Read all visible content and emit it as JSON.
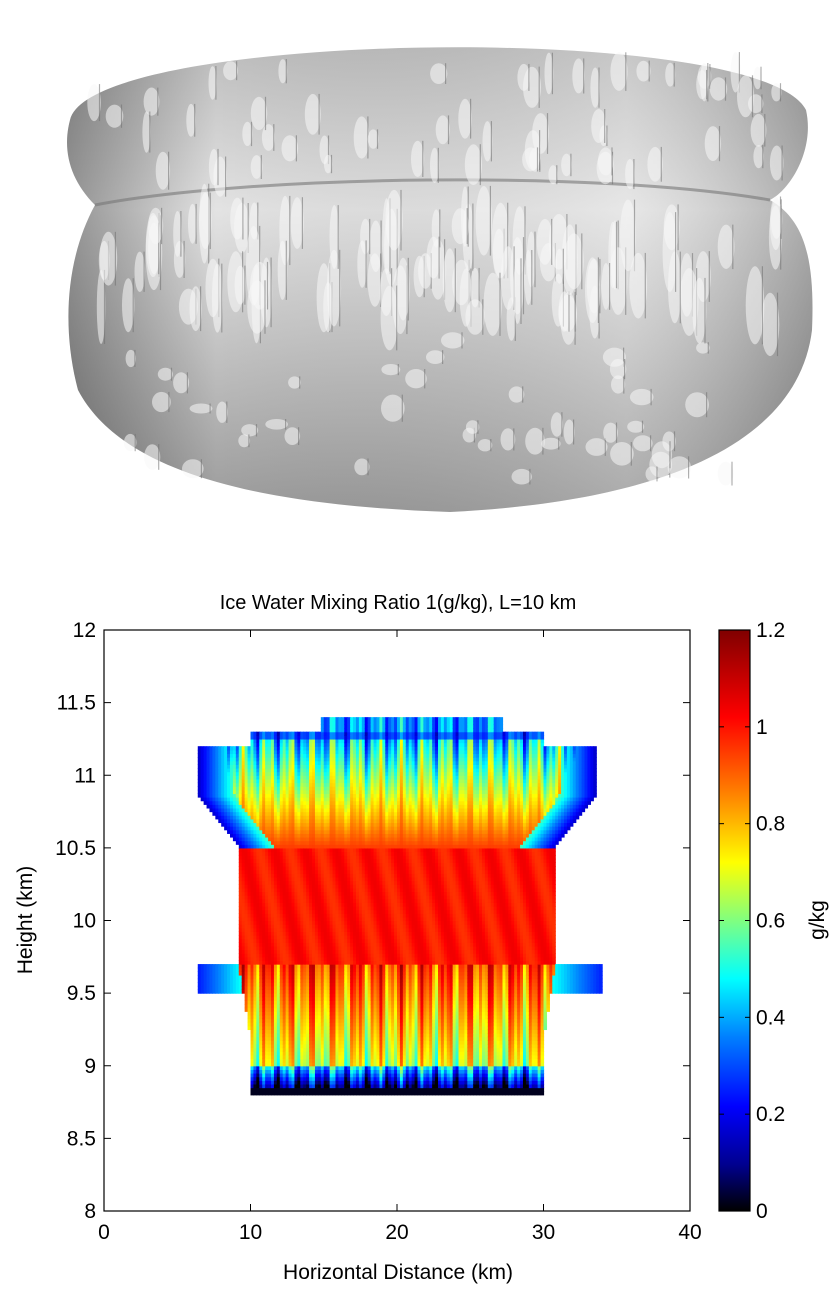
{
  "surface_render": {
    "fill_color": "#d6d6d6",
    "shadow_color": "#6f6f6f",
    "highlight_color": "#f7f7f7"
  },
  "chart_data": {
    "type": "heatmap",
    "title": "Ice Water Mixing Ratio 1(g/kg), L=10 km",
    "xlabel": "Horizontal Distance (km)",
    "ylabel": "Height (km)",
    "xlim": [
      0,
      40
    ],
    "ylim": [
      8,
      12
    ],
    "xticks": [
      0,
      10,
      20,
      30,
      40
    ],
    "yticks": [
      8,
      8.5,
      9,
      9.5,
      10,
      10.5,
      11,
      11.5,
      12
    ],
    "colorbar": {
      "label": "g/kg",
      "range": [
        0,
        1.2
      ],
      "ticks": [
        0,
        0.2,
        0.4,
        0.6,
        0.8,
        1,
        1.2
      ],
      "colormap": [
        "#000000",
        "#00008f",
        "#0000ff",
        "#0080ff",
        "#00ffff",
        "#80ff80",
        "#ffff00",
        "#ff8000",
        "#ff0000",
        "#800000"
      ]
    },
    "grid": false,
    "regions": {
      "core_band": {
        "x_range": [
          9.2,
          30.8
        ],
        "y_range": [
          9.7,
          10.5
        ],
        "value": 1.0
      },
      "upper_layer": {
        "x_range": [
          6.5,
          33.8
        ],
        "y_range": [
          10.5,
          11.3
        ],
        "value": 0.55
      },
      "top_cap": {
        "x_range": [
          14.8,
          27.2
        ],
        "y_range": [
          11.3,
          11.4
        ],
        "value": 0.45
      },
      "lower_layer": {
        "x_range": [
          10,
          30
        ],
        "y_range": [
          8.8,
          9.7
        ],
        "value": 0.8
      },
      "left_lobe": {
        "x_range": [
          6.5,
          9.5
        ],
        "y_range": [
          9.5,
          10.1
        ],
        "value": 0.45
      },
      "right_lobe": {
        "x_range": [
          30.5,
          34
        ],
        "y_range": [
          9.5,
          10.1
        ],
        "value": 0.45
      }
    }
  }
}
